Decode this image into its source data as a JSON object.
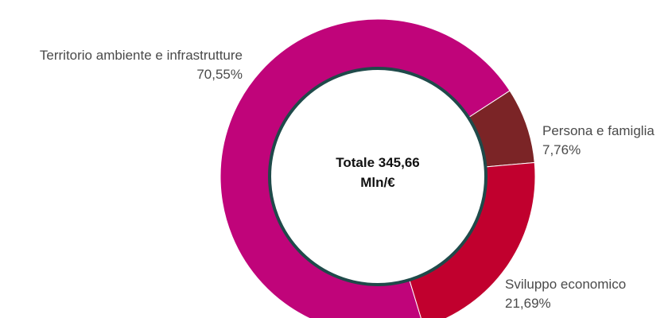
{
  "chart_data": {
    "type": "pie",
    "title": "",
    "center_label": {
      "line1": "Totale 345,66",
      "line2": "Mln/€"
    },
    "slices": [
      {
        "name": "Territorio ambiente e infrastrutture",
        "value": 70.55,
        "value_label": "70,55%",
        "color": "#C0047A"
      },
      {
        "name": "Persona e famiglia",
        "value": 7.76,
        "value_label": "7,76%",
        "color": "#7B2426"
      },
      {
        "name": "Sviluppo economico",
        "value": 21.69,
        "value_label": "21,69%",
        "color": "#C1002E"
      }
    ],
    "center_ring_color": "#1F4A4A"
  }
}
